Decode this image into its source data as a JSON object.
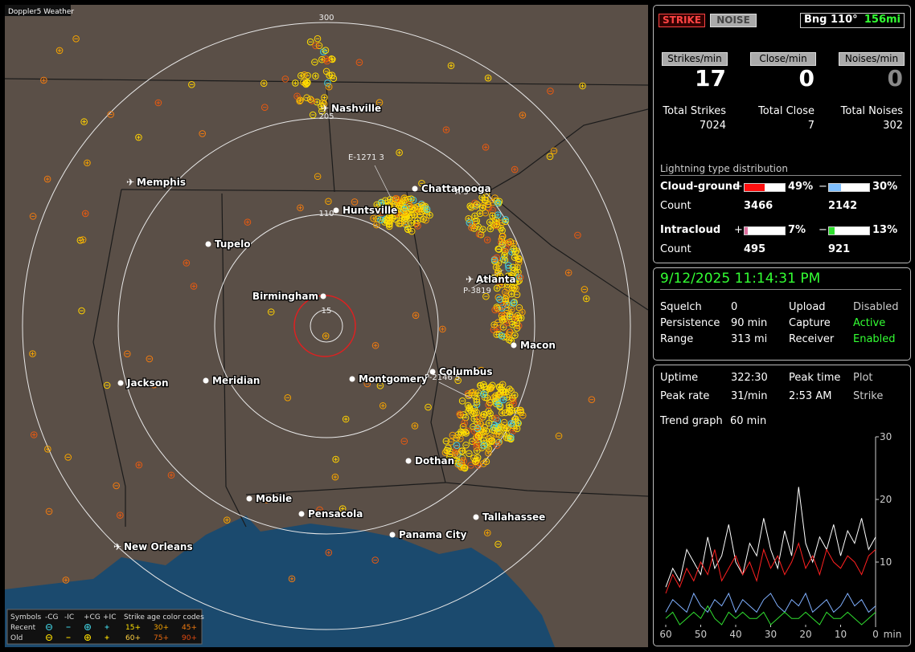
{
  "header": {
    "title": "Doppler5 Weather"
  },
  "map": {
    "ring_labels": [
      "300",
      "205",
      "110",
      "15"
    ],
    "cities": [
      {
        "name": "Nashville",
        "kind": "airport"
      },
      {
        "name": "Memphis",
        "kind": "airport"
      },
      {
        "name": "Chattanooga",
        "kind": "city"
      },
      {
        "name": "Huntsville",
        "kind": "city"
      },
      {
        "name": "Tupelo",
        "kind": "city"
      },
      {
        "name": "Atlanta",
        "kind": "airport"
      },
      {
        "name": "Birmingham",
        "kind": "city"
      },
      {
        "name": "Macon",
        "kind": "city"
      },
      {
        "name": "Jackson",
        "kind": "city"
      },
      {
        "name": "Meridian",
        "kind": "city"
      },
      {
        "name": "Montgomery",
        "kind": "city"
      },
      {
        "name": "Columbus",
        "kind": "city"
      },
      {
        "name": "Dothan",
        "kind": "city"
      },
      {
        "name": "Mobile",
        "kind": "city"
      },
      {
        "name": "Pensacola",
        "kind": "city"
      },
      {
        "name": "Tallahassee",
        "kind": "city"
      },
      {
        "name": "Panama City",
        "kind": "city"
      },
      {
        "name": "New Orleans",
        "kind": "airport"
      }
    ],
    "tags": [
      "E-1271 3",
      "P-3819",
      "P-2146 5",
      "A-3"
    ]
  },
  "legend": {
    "symbols_title": "Symbols",
    "symbols": [
      "-CG",
      "-IC",
      "+CG",
      "+IC"
    ],
    "age_title": "Strike age color codes",
    "rows": [
      {
        "name": "Recent",
        "ages": [
          "15+",
          "30+",
          "45+"
        ]
      },
      {
        "name": "Old",
        "ages": [
          "60+",
          "75+",
          "90+"
        ]
      }
    ]
  },
  "panel": {
    "strike": "STRIKE",
    "noise": "NOISE",
    "bearing": "Bng 110°",
    "distance": "156mi",
    "rates": [
      {
        "label": "Strikes/min",
        "value": "17",
        "total_label": "Total Strikes",
        "total": "7024"
      },
      {
        "label": "Close/min",
        "value": "0",
        "total_label": "Total Close",
        "total": "7"
      },
      {
        "label": "Noises/min",
        "value": "0",
        "total_label": "Total Noises",
        "total": "302"
      }
    ],
    "distribution_title": "Lightning type distribution",
    "distribution": [
      {
        "name": "Cloud-ground",
        "count_label": "Count",
        "pos": {
          "sign": "+",
          "value": 49,
          "label": "49%",
          "count": "3466"
        },
        "neg": {
          "sign": "−",
          "value": 30,
          "label": "30%",
          "count": "2142"
        }
      },
      {
        "name": "Intracloud",
        "count_label": "Count",
        "pos": {
          "sign": "+",
          "value": 7,
          "label": "7%",
          "count": "495"
        },
        "neg": {
          "sign": "−",
          "value": 13,
          "label": "13%",
          "count": "921"
        }
      }
    ],
    "datetime": "9/12/2025 11:14:31 PM",
    "settings": [
      [
        "Squelch",
        "0",
        "Upload",
        "Disabled"
      ],
      [
        "Persistence",
        "90 min",
        "Capture",
        "Active"
      ],
      [
        "Range",
        "313 mi",
        "Receiver",
        "Enabled"
      ]
    ],
    "stats": [
      [
        "Uptime",
        "322:30",
        "Peak time",
        "Plot"
      ],
      [
        "Peak rate",
        "31/min",
        "2:53 AM",
        "Strike"
      ]
    ],
    "trend_label": "Trend graph",
    "trend_value": "60 min"
  },
  "chart_data": {
    "type": "line",
    "x_label": "min",
    "x": [
      60,
      58,
      56,
      54,
      52,
      50,
      48,
      46,
      44,
      42,
      40,
      38,
      36,
      34,
      32,
      30,
      28,
      26,
      24,
      22,
      20,
      18,
      16,
      14,
      12,
      10,
      8,
      6,
      4,
      2,
      0
    ],
    "xlim": [
      60,
      0
    ],
    "xticks": [
      60,
      50,
      40,
      30,
      20,
      10,
      0
    ],
    "ylim": [
      0,
      30
    ],
    "yticks": [
      10,
      20,
      30
    ],
    "series": [
      {
        "color": "#ffffff",
        "values": [
          6,
          9,
          7,
          12,
          10,
          8,
          14,
          9,
          11,
          16,
          10,
          8,
          13,
          11,
          17,
          12,
          9,
          15,
          11,
          22,
          13,
          10,
          14,
          12,
          16,
          11,
          15,
          13,
          17,
          12,
          14
        ]
      },
      {
        "color": "#ff2020",
        "values": [
          5,
          8,
          6,
          9,
          7,
          10,
          8,
          12,
          7,
          9,
          11,
          8,
          10,
          7,
          12,
          9,
          11,
          8,
          10,
          13,
          9,
          11,
          8,
          12,
          10,
          9,
          11,
          10,
          8,
          11,
          12
        ]
      },
      {
        "color": "#80b0ff",
        "values": [
          2,
          4,
          3,
          2,
          5,
          3,
          2,
          4,
          3,
          5,
          2,
          4,
          3,
          2,
          4,
          5,
          3,
          2,
          4,
          3,
          5,
          2,
          3,
          4,
          2,
          3,
          5,
          3,
          4,
          2,
          3
        ]
      },
      {
        "color": "#30e030",
        "values": [
          1,
          2,
          0,
          1,
          2,
          1,
          3,
          1,
          0,
          2,
          1,
          2,
          1,
          1,
          2,
          0,
          1,
          2,
          1,
          1,
          2,
          1,
          0,
          2,
          1,
          1,
          2,
          1,
          0,
          1,
          2
        ]
      }
    ]
  }
}
